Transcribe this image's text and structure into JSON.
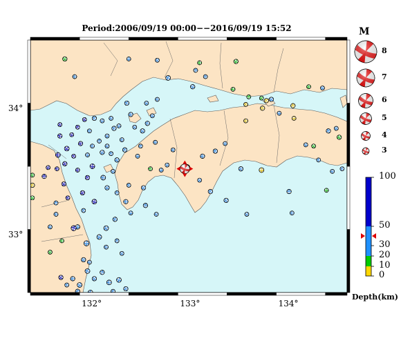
{
  "title": "Period:2006/09/19 00:00−−2016/09/19 15:52",
  "map": {
    "lat_labels": [
      {
        "lat": 34,
        "text": "34°"
      },
      {
        "lat": 33,
        "text": "33°"
      }
    ],
    "lon_labels": [
      {
        "lon": 132,
        "text": "132°"
      },
      {
        "lon": 133,
        "text": "133°"
      },
      {
        "lon": 134,
        "text": "134°"
      }
    ],
    "lon_range": [
      131.38,
      134.6
    ],
    "lat_range": [
      32.55,
      34.55
    ],
    "colors": {
      "land": "#fce4c4",
      "sea": "#d6f6f8",
      "frame": "#000000"
    }
  },
  "magnitude_legend": {
    "title": "M",
    "entries": [
      {
        "m": 8,
        "label": "8"
      },
      {
        "m": 7,
        "label": "7"
      },
      {
        "m": 6,
        "label": "6"
      },
      {
        "m": 5,
        "label": "5"
      },
      {
        "m": 4,
        "label": "4"
      },
      {
        "m": 3,
        "label": "3"
      }
    ]
  },
  "depth_legend": {
    "unit": "Depth(km)",
    "ticks": [
      {
        "value": 100,
        "label": "100"
      },
      {
        "value": 50,
        "label": "50"
      },
      {
        "value": 30,
        "label": "30"
      },
      {
        "value": 20,
        "label": "20"
      },
      {
        "value": 10,
        "label": "10"
      },
      {
        "value": 0,
        "label": "0"
      }
    ],
    "bands": [
      {
        "from": 0,
        "to": 10,
        "color": "#ffd700"
      },
      {
        "from": 10,
        "to": 20,
        "color": "#00cc00"
      },
      {
        "from": 20,
        "to": 50,
        "color": "#1e90ff"
      },
      {
        "from": 50,
        "to": 100,
        "color": "#0000cc"
      }
    ],
    "marker_depth": 40
  },
  "events": [
    [
      131.73,
      34.4,
      3.4,
      15,
      40
    ],
    [
      131.83,
      34.26,
      3.2,
      30,
      100
    ],
    [
      132.38,
      34.4,
      3.3,
      35,
      0
    ],
    [
      132.67,
      34.39,
      3.3,
      40,
      60
    ],
    [
      132.78,
      34.25,
      3.5,
      40,
      120
    ],
    [
      133.06,
      34.31,
      3.3,
      45,
      200
    ],
    [
      133.1,
      34.37,
      3.3,
      12,
      90
    ],
    [
      133.47,
      34.38,
      3.4,
      10,
      30
    ],
    [
      133.16,
      34.26,
      3.2,
      40,
      160
    ],
    [
      133.03,
      34.18,
      3.4,
      40,
      20
    ],
    [
      133.44,
      34.16,
      3.3,
      15,
      80
    ],
    [
      133.73,
      34.09,
      3.2,
      15,
      60
    ],
    [
      133.74,
      34.01,
      3.4,
      5,
      110
    ],
    [
      133.78,
      34.07,
      3.4,
      5,
      140
    ],
    [
      133.83,
      34.08,
      3.4,
      35,
      40
    ],
    [
      133.91,
      33.97,
      3.3,
      30,
      10
    ],
    [
      134.05,
      34.03,
      3.4,
      5,
      160
    ],
    [
      134.21,
      34.18,
      3.3,
      10,
      70
    ],
    [
      134.35,
      34.17,
      3.2,
      40,
      30
    ],
    [
      134.06,
      33.93,
      3.2,
      5,
      0
    ],
    [
      133.57,
      34.04,
      3.3,
      5,
      120
    ],
    [
      133.6,
      34.1,
      3.2,
      10,
      200
    ],
    [
      133.57,
      33.91,
      3.3,
      5,
      80
    ],
    [
      134.18,
      33.72,
      3.3,
      40,
      20
    ],
    [
      134.26,
      33.71,
      3.2,
      12,
      40
    ],
    [
      134.31,
      33.6,
      3.2,
      30,
      100
    ],
    [
      134.41,
      33.83,
      3.4,
      40,
      150
    ],
    [
      134.49,
      33.85,
      3.3,
      40,
      30
    ],
    [
      134.52,
      33.78,
      3.4,
      15,
      60
    ],
    [
      134.55,
      33.53,
      3.3,
      40,
      120
    ],
    [
      134.45,
      33.51,
      3.2,
      40,
      80
    ],
    [
      134.39,
      33.36,
      3.3,
      15,
      10
    ],
    [
      134.01,
      33.35,
      3.4,
      40,
      180
    ],
    [
      134.04,
      33.18,
      3.2,
      40,
      90
    ],
    [
      133.73,
      33.52,
      3.5,
      3,
      0
    ],
    [
      133.52,
      33.53,
      3.4,
      40,
      60
    ],
    [
      133.26,
      33.67,
      3.4,
      40,
      130
    ],
    [
      133.36,
      33.73,
      3.3,
      40,
      20
    ],
    [
      133.13,
      33.63,
      3.4,
      40,
      80
    ],
    [
      133.1,
      33.44,
      3.3,
      40,
      40
    ],
    [
      132.97,
      33.54,
      3.9,
      10,
      0
    ],
    [
      133.21,
      33.35,
      3.4,
      40,
      120
    ],
    [
      133.37,
      33.28,
      3.4,
      40,
      60
    ],
    [
      133.58,
      33.17,
      3.2,
      40,
      30
    ],
    [
      132.6,
      33.53,
      3.3,
      10,
      100
    ],
    [
      132.71,
      33.52,
      3.3,
      40,
      10
    ],
    [
      132.53,
      33.38,
      3.4,
      40,
      50
    ],
    [
      132.38,
      33.4,
      3.3,
      40,
      120
    ],
    [
      132.55,
      33.24,
      3.4,
      40,
      200
    ],
    [
      132.66,
      33.17,
      3.3,
      40,
      70
    ],
    [
      132.77,
      33.56,
      3.3,
      40,
      30
    ],
    [
      132.83,
      33.68,
      3.3,
      40,
      60
    ],
    [
      132.52,
      33.83,
      3.4,
      40,
      40
    ],
    [
      132.57,
      33.89,
      3.4,
      40,
      110
    ],
    [
      132.62,
      33.95,
      3.3,
      40,
      20
    ],
    [
      132.65,
      33.74,
      3.3,
      40,
      90
    ],
    [
      132.5,
      33.71,
      3.3,
      40,
      150
    ],
    [
      132.47,
      33.63,
      3.3,
      40,
      10
    ],
    [
      132.44,
      33.86,
      3.3,
      40,
      40
    ],
    [
      132.4,
      33.96,
      3.4,
      40,
      70
    ],
    [
      132.36,
      34.05,
      3.4,
      40,
      120
    ],
    [
      132.56,
      34.05,
      3.3,
      40,
      30
    ],
    [
      132.67,
      34.08,
      3.3,
      40,
      90
    ],
    [
      132.28,
      33.87,
      3.3,
      40,
      20
    ],
    [
      132.31,
      33.76,
      3.3,
      40,
      80
    ],
    [
      132.34,
      33.68,
      3.4,
      40,
      140
    ],
    [
      132.26,
      33.6,
      3.4,
      40,
      60
    ],
    [
      132.22,
      33.51,
      3.3,
      40,
      30
    ],
    [
      132.12,
      33.46,
      3.5,
      40,
      100
    ],
    [
      132.16,
      33.38,
      3.4,
      40,
      40
    ],
    [
      132.26,
      33.34,
      3.3,
      40,
      160
    ],
    [
      132.35,
      33.27,
      3.4,
      40,
      90
    ],
    [
      132.4,
      33.18,
      3.3,
      40,
      20
    ],
    [
      132.24,
      33.13,
      3.4,
      40,
      120
    ],
    [
      132.15,
      33.06,
      3.5,
      40,
      60
    ],
    [
      132.08,
      32.99,
      3.5,
      40,
      30
    ],
    [
      132.15,
      32.91,
      3.3,
      40,
      100
    ],
    [
      132.26,
      32.96,
      3.3,
      40,
      150
    ],
    [
      132.31,
      32.86,
      3.3,
      40,
      40
    ],
    [
      131.95,
      32.94,
      3.6,
      40,
      10
    ],
    [
      131.98,
      32.79,
      3.3,
      40,
      80
    ],
    [
      131.96,
      32.72,
      3.5,
      40,
      120
    ],
    [
      132.03,
      32.66,
      3.4,
      40,
      40
    ],
    [
      132.11,
      32.71,
      3.4,
      40,
      200
    ],
    [
      132.18,
      32.63,
      3.5,
      40,
      90
    ],
    [
      132.28,
      32.65,
      3.5,
      40,
      20
    ],
    [
      132.35,
      32.58,
      3.4,
      40,
      60
    ],
    [
      132.22,
      32.56,
      3.3,
      40,
      140
    ],
    [
      131.88,
      32.61,
      3.5,
      40,
      30
    ],
    [
      131.81,
      32.66,
      3.4,
      40,
      80
    ],
    [
      131.86,
      32.56,
      3.4,
      40,
      160
    ],
    [
      131.99,
      32.55,
      3.5,
      40,
      100
    ],
    [
      131.69,
      32.67,
      3.4,
      80,
      40
    ],
    [
      131.75,
      32.61,
      3.3,
      40,
      120
    ],
    [
      131.92,
      32.81,
      3.4,
      40,
      60
    ],
    [
      131.86,
      33.07,
      3.4,
      40,
      10
    ],
    [
      131.9,
      32.5,
      3.3,
      40,
      30
    ],
    [
      131.82,
      33.06,
      3.6,
      60,
      200
    ],
    [
      131.7,
      32.96,
      3.3,
      15,
      90
    ],
    [
      131.92,
      33.2,
      3.3,
      40,
      140
    ],
    [
      132.03,
      33.27,
      3.5,
      70,
      20
    ],
    [
      131.91,
      33.34,
      3.4,
      70,
      60
    ],
    [
      131.76,
      33.3,
      3.3,
      70,
      120
    ],
    [
      131.72,
      33.41,
      3.4,
      70,
      40
    ],
    [
      131.86,
      33.52,
      3.3,
      70,
      80
    ],
    [
      131.96,
      33.46,
      3.4,
      70,
      150
    ],
    [
      132.01,
      33.55,
      3.5,
      70,
      10
    ],
    [
      131.73,
      33.57,
      3.4,
      70,
      60
    ],
    [
      131.65,
      33.53,
      3.3,
      70,
      100
    ],
    [
      131.56,
      33.54,
      3.3,
      70,
      30
    ],
    [
      131.52,
      33.47,
      3.4,
      70,
      180
    ],
    [
      131.66,
      33.64,
      3.5,
      70,
      90
    ],
    [
      131.75,
      33.69,
      3.5,
      70,
      40
    ],
    [
      131.82,
      33.63,
      3.3,
      70,
      130
    ],
    [
      131.89,
      33.73,
      3.4,
      70,
      70
    ],
    [
      131.8,
      33.8,
      3.3,
      70,
      20
    ],
    [
      131.68,
      33.79,
      3.4,
      70,
      110
    ],
    [
      131.68,
      33.88,
      3.3,
      70,
      60
    ],
    [
      131.86,
      33.86,
      3.3,
      70,
      150
    ],
    [
      131.93,
      33.92,
      3.3,
      70,
      30
    ],
    [
      131.98,
      33.83,
      3.3,
      40,
      90
    ],
    [
      132.03,
      33.93,
      3.4,
      40,
      140
    ],
    [
      132.11,
      33.91,
      3.3,
      40,
      20
    ],
    [
      132.2,
      33.93,
      3.3,
      40,
      70
    ],
    [
      132.23,
      33.85,
      3.4,
      40,
      120
    ],
    [
      132.16,
      33.79,
      3.3,
      40,
      40
    ],
    [
      132.08,
      33.75,
      3.3,
      40,
      180
    ],
    [
      132.01,
      33.71,
      3.3,
      40,
      100
    ],
    [
      132.11,
      33.66,
      3.4,
      40,
      30
    ],
    [
      132.16,
      33.71,
      3.3,
      40,
      60
    ],
    [
      132.2,
      33.65,
      3.3,
      40,
      150
    ],
    [
      131.96,
      33.64,
      3.3,
      40,
      10
    ],
    [
      131.4,
      33.48,
      3.3,
      15,
      80
    ],
    [
      131.4,
      33.4,
      3.4,
      5,
      120
    ],
    [
      131.4,
      33.3,
      3.3,
      15,
      40
    ],
    [
      131.3,
      33.25,
      3.3,
      5,
      90
    ],
    [
      131.58,
      32.87,
      3.3,
      15,
      40
    ],
    [
      131.58,
      33.07,
      3.3,
      40,
      60
    ],
    [
      131.64,
      33.17,
      3.3,
      40,
      100
    ],
    [
      131.64,
      33.26,
      3.3,
      40,
      160
    ]
  ]
}
